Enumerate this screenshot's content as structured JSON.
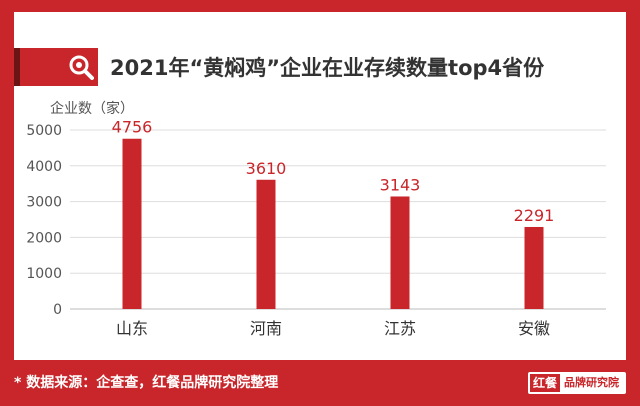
{
  "header": {
    "title": "2021年“黄焖鸡”企业在业存续数量top4省份",
    "icon": "search-icon"
  },
  "footer": {
    "source": "* 数据来源：企查查，红餐品牌研究院整理",
    "brand_mark": "红餐",
    "brand_name": "品牌研究院"
  },
  "colors": {
    "accent": "#c8262a",
    "bar": "#c8262a",
    "label": "#c8262a",
    "grid": "#dddddd"
  },
  "chart_data": {
    "type": "bar",
    "title": "2021年“黄焖鸡”企业在业存续数量top4省份",
    "ylabel": "企业数（家）",
    "xlabel": "",
    "categories": [
      "山东",
      "河南",
      "江苏",
      "安徽"
    ],
    "values": [
      4756,
      3610,
      3143,
      2291
    ],
    "ylim": [
      0,
      5000
    ],
    "yticks": [
      0,
      1000,
      2000,
      3000,
      4000,
      5000
    ],
    "grid": true,
    "data_labels": true
  }
}
